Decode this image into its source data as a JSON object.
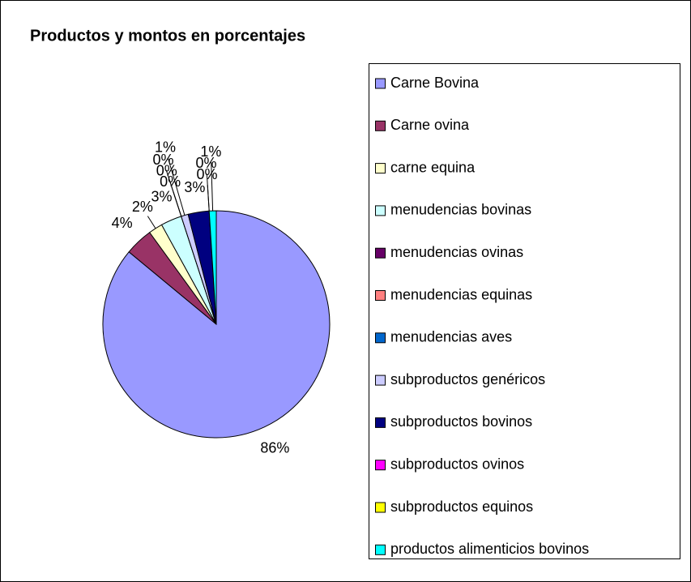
{
  "chart_data": {
    "type": "pie",
    "title": "Productos y montos en porcentajes",
    "categories": [
      "Carne Bovina",
      "Carne ovina",
      "carne equina",
      "menudencias bovinas",
      "menudencias ovinas",
      "menudencias equinas",
      "menudencias aves",
      "subproductos genéricos",
      "subproductos bovinos",
      "subproductos ovinos",
      "subproductos equinos",
      "productos alimenticios bovinos"
    ],
    "values": [
      86,
      4,
      2,
      3,
      0,
      0,
      0,
      1,
      3,
      0,
      0,
      1
    ],
    "value_labels": [
      "86%",
      "4%",
      "2%",
      "3%",
      "0%",
      "0%",
      "0%",
      "1%",
      "3%",
      "0%",
      "0%",
      "1%"
    ],
    "colors": [
      "#9999FF",
      "#993366",
      "#FFFFCC",
      "#CCFFFF",
      "#660066",
      "#FF8080",
      "#0066CC",
      "#CCCCFF",
      "#000080",
      "#FF00FF",
      "#FFFF00",
      "#00FFFF"
    ],
    "legend": "right"
  }
}
